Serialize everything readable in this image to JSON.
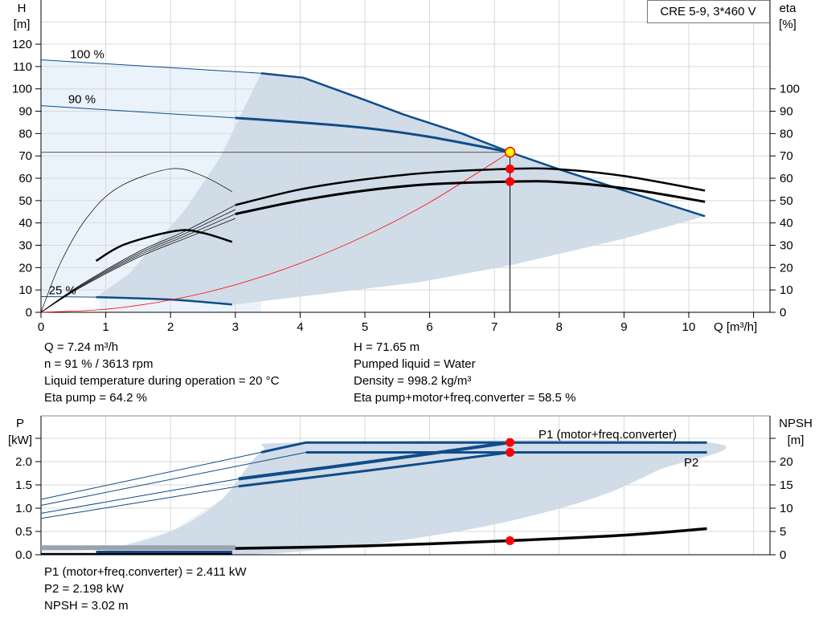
{
  "chart_data": [
    {
      "type": "line",
      "title": "CRE 5-9, 3*460 V",
      "xlabel": "Q [m³/h]",
      "ylabel": "H [m]",
      "ylabel_parts": [
        "H",
        "[m]"
      ],
      "y2label_parts": [
        "eta",
        "[%]"
      ],
      "xlim": [
        0,
        11
      ],
      "ylim": [
        0,
        140
      ],
      "x_ticks": [
        0,
        1,
        2,
        3,
        4,
        5,
        6,
        7,
        8,
        9,
        10
      ],
      "y_ticks": [
        0,
        10,
        20,
        30,
        40,
        50,
        60,
        70,
        80,
        90,
        100,
        110,
        120
      ],
      "y2_ticks": [
        0,
        10,
        20,
        30,
        40,
        50,
        60,
        70,
        80,
        90,
        100
      ],
      "grid": true,
      "curve_labels": [
        "100 %",
        "90 %",
        "25 %"
      ],
      "series": [
        {
          "name": "100 %",
          "axis": "H",
          "color": "#0f4c8a",
          "points": [
            [
              0,
              113
            ],
            [
              3.4,
              107
            ],
            [
              4.05,
              105
            ],
            [
              5,
              95
            ],
            [
              5.6,
              88.5
            ],
            [
              6.5,
              80
            ],
            [
              7.24,
              71.65
            ],
            [
              8,
              64
            ],
            [
              9,
              54.5
            ],
            [
              10.25,
              43
            ]
          ]
        },
        {
          "name": "90 %",
          "axis": "H",
          "color": "#0f4c8a",
          "points": [
            [
              0,
              92.5
            ],
            [
              3,
              87
            ],
            [
              4,
              85
            ],
            [
              5,
              82.5
            ],
            [
              6,
              78.5
            ],
            [
              7.24,
              71.65
            ]
          ]
        },
        {
          "name": "25 %",
          "axis": "H",
          "color": "#0f4c8a",
          "points": [
            [
              0,
              7
            ],
            [
              0.85,
              6.8
            ],
            [
              2,
              5.7
            ],
            [
              2.95,
              3.5
            ]
          ]
        },
        {
          "axis": "H",
          "color": "#ff0000",
          "role": "system-curve",
          "points": [
            [
              0,
              0
            ],
            [
              1,
              1.37
            ],
            [
              2,
              5.47
            ],
            [
              3,
              12.3
            ],
            [
              4,
              21.9
            ],
            [
              5,
              34.2
            ],
            [
              6,
              49.2
            ],
            [
              7.24,
              71.65
            ]
          ]
        },
        {
          "axis": "eta",
          "color": "#000000",
          "role": "eta-pump",
          "points": [
            [
              3,
              48
            ],
            [
              4,
              55
            ],
            [
              5,
              59.5
            ],
            [
              6,
              62.5
            ],
            [
              7.24,
              64.2
            ],
            [
              8,
              64
            ],
            [
              9,
              61
            ],
            [
              10.25,
              54.5
            ]
          ]
        },
        {
          "axis": "eta",
          "color": "#000000",
          "role": "eta-total",
          "points": [
            [
              3,
              44
            ],
            [
              4,
              50
            ],
            [
              5,
              54.5
            ],
            [
              6,
              57.3
            ],
            [
              7.24,
              58.5
            ],
            [
              8,
              58.3
            ],
            [
              9,
              55.5
            ],
            [
              10.25,
              49.5
            ]
          ]
        },
        {
          "axis": "eta",
          "color": "#000000",
          "role": "eta-pump-25",
          "points": [
            [
              0,
              0
            ],
            [
              0.3,
              22
            ],
            [
              0.7,
              42
            ],
            [
              1.2,
              56
            ],
            [
              2,
              64.2
            ],
            [
              2.5,
              61
            ],
            [
              2.95,
              54
            ]
          ]
        },
        {
          "axis": "eta",
          "color": "#000000",
          "role": "eta-total-25",
          "points": [
            [
              0.85,
              23
            ],
            [
              1.3,
              30.5
            ],
            [
              2.1,
              36.5
            ],
            [
              2.5,
              35.5
            ],
            [
              2.95,
              31.5
            ]
          ]
        }
      ],
      "duty_point": {
        "Q": 7.24,
        "H": 71.65,
        "eta_pump": 64.2,
        "eta_total": 58.5
      }
    },
    {
      "type": "line",
      "ylabel_parts": [
        "P",
        "[kW]"
      ],
      "y2label_parts": [
        "NPSH",
        "[m]"
      ],
      "xlim": [
        0,
        11
      ],
      "ylim": [
        0,
        2.5
      ],
      "y_ticks": [
        "0.0",
        "0.5",
        "1.0",
        "1.5",
        "2.0"
      ],
      "y2_ticks": [
        0,
        5,
        10,
        15,
        20
      ],
      "grid": true,
      "series": [
        {
          "name": "P1 (motor+freq.converter)",
          "unit": "kW",
          "color": "#0f4c8a",
          "points": [
            [
              0,
              1.19
            ],
            [
              3.4,
              2.2
            ],
            [
              4.09,
              2.411
            ],
            [
              7.24,
              2.411
            ],
            [
              10.28,
              2.411
            ]
          ]
        },
        {
          "name": "P2",
          "unit": "kW",
          "color": "#0f4c8a",
          "points": [
            [
              0,
              1.06
            ],
            [
              4.09,
              2.198
            ],
            [
              7.24,
              2.198
            ],
            [
              10.28,
              2.198
            ]
          ]
        },
        {
          "unit": "kW",
          "color": "#0f4c8a",
          "role": "P1-90",
          "points": [
            [
              0,
              0.89
            ],
            [
              3.05,
              1.63
            ],
            [
              5,
              1.98
            ],
            [
              7.24,
              2.411
            ]
          ]
        },
        {
          "unit": "kW",
          "color": "#0f4c8a",
          "role": "P2-90",
          "points": [
            [
              0,
              0.78
            ],
            [
              3.05,
              1.47
            ],
            [
              5,
              1.8
            ],
            [
              7.24,
              2.198
            ]
          ]
        },
        {
          "name": "NPSH",
          "unit": "m",
          "color": "#000000",
          "points": [
            [
              3,
              1.35
            ],
            [
              5,
              1.9
            ],
            [
              7.24,
              3.02
            ],
            [
              9,
              4.2
            ],
            [
              10.28,
              5.6
            ]
          ]
        }
      ],
      "duty_point": {
        "P1": 2.411,
        "P2": 2.198,
        "NPSH": 3.02
      }
    }
  ],
  "info_top": {
    "left": [
      "Q = 7.24 m³/h",
      "n = 91 % / 3613 rpm",
      "Liquid temperature during operation = 20 °C",
      "Eta pump = 64.2 %"
    ],
    "right": [
      "H = 71.65 m",
      "Pumped liquid = Water",
      "Density = 998.2 kg/m³",
      "Eta pump+motor+freq.converter = 58.5 %"
    ]
  },
  "info_bottom": [
    "P1 (motor+freq.converter) = 2.411 kW",
    "P2 = 2.198 kW",
    "NPSH = 3.02 m"
  ],
  "colors": {
    "curve": "#0f4c8a",
    "region_dark": "#d0dce8",
    "region_light": "#eaf3fc",
    "duty": "#ff0000",
    "duty_fill": "#ffff00"
  }
}
